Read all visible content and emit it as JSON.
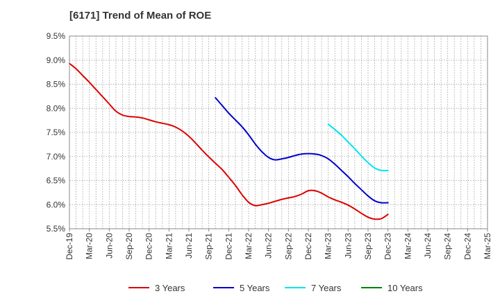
{
  "chart_data": {
    "type": "line",
    "title": "[6171]  Trend of Mean of ROE",
    "xlabel": "",
    "ylabel": "",
    "ylim": [
      5.5,
      9.5
    ],
    "y_ticks": [
      "9.5%",
      "9.0%",
      "8.5%",
      "8.0%",
      "7.5%",
      "7.0%",
      "6.5%",
      "6.0%",
      "5.5%"
    ],
    "y_tick_values": [
      9.5,
      9.0,
      8.5,
      8.0,
      7.5,
      7.0,
      6.5,
      6.0,
      5.5
    ],
    "x_ticks": [
      "Dec-19",
      "Mar-20",
      "Jun-20",
      "Sep-20",
      "Dec-20",
      "Mar-21",
      "Jun-21",
      "Sep-21",
      "Dec-21",
      "Mar-22",
      "Jun-22",
      "Sep-22",
      "Dec-22",
      "Mar-23",
      "Jun-23",
      "Sep-23",
      "Dec-23",
      "Mar-24",
      "Jun-24",
      "Sep-24",
      "Dec-24",
      "Mar-25"
    ],
    "grid": true,
    "legend_position": "bottom",
    "series": [
      {
        "name": "3 Years",
        "color": "#dd0000",
        "values": [
          8.93,
          8.82,
          8.68,
          8.54,
          8.39,
          8.24,
          8.09,
          7.94,
          7.86,
          7.83,
          7.82,
          7.8,
          7.76,
          7.72,
          7.69,
          7.66,
          7.61,
          7.53,
          7.42,
          7.28,
          7.13,
          6.99,
          6.86,
          6.73,
          6.57,
          6.4,
          6.21,
          6.05,
          5.98,
          6.0,
          6.03,
          6.07,
          6.11,
          6.14,
          6.17,
          6.22,
          6.29,
          6.29,
          6.24,
          6.16,
          6.1,
          6.05,
          5.99,
          5.91,
          5.82,
          5.74,
          5.7,
          5.71,
          5.8
        ],
        "start_index": 0
      },
      {
        "name": "5 Years",
        "color": "#0000cc",
        "values": [
          8.22,
          8.06,
          7.9,
          7.76,
          7.62,
          7.45,
          7.26,
          7.1,
          6.98,
          6.93,
          6.95,
          6.98,
          7.02,
          7.05,
          7.06,
          7.05,
          7.02,
          6.95,
          6.84,
          6.71,
          6.58,
          6.44,
          6.31,
          6.18,
          6.08,
          6.04,
          6.04
        ],
        "start_index": 22
      },
      {
        "name": "7 Years",
        "color": "#00e5ee",
        "values": [
          7.67,
          7.56,
          7.44,
          7.3,
          7.16,
          7.01,
          6.87,
          6.76,
          6.71,
          6.71
        ],
        "start_index": 39
      },
      {
        "name": "10 Years",
        "color": "#008000",
        "values": [],
        "start_index": 0
      }
    ]
  }
}
